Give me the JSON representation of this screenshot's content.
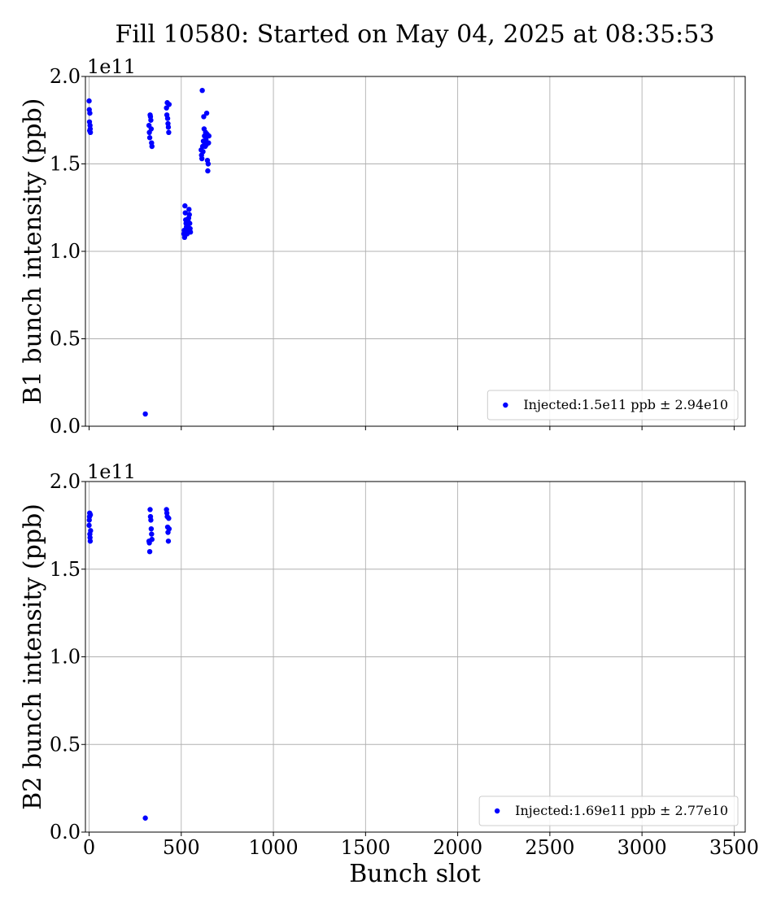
{
  "chart_data": {
    "title": "Fill 10580: Started on May 04, 2025 at 08:35:53",
    "xlabel": "Bunch slot",
    "xlim": [
      -20,
      3560
    ],
    "xticks": [
      0,
      500,
      1000,
      1500,
      2000,
      2500,
      3000,
      3500
    ],
    "xtick_labels": [
      "0",
      "500",
      "1000",
      "1500",
      "2000",
      "2500",
      "3000",
      "3500"
    ],
    "colors": {
      "points": "#0000ff",
      "grid": "#b0b0b0",
      "legend_border": "#cccccc"
    },
    "panels": [
      {
        "type": "scatter",
        "ylabel": "B1 bunch intensity (ppb)",
        "ylim": [
          0,
          2.0
        ],
        "yticks": [
          0.0,
          0.5,
          1.0,
          1.5,
          2.0
        ],
        "ytick_labels": [
          "0.0",
          "0.5",
          "1.0",
          "1.5",
          "2.0"
        ],
        "y_offset_text": "1e11",
        "grid": true,
        "legend_position": "lower right",
        "series": [
          {
            "name": "Injected:1.5e11 ppb ± 2.94e10",
            "points": [
              [
                0,
                1.86
              ],
              [
                1,
                1.81
              ],
              [
                2,
                1.74
              ],
              [
                3,
                1.69
              ],
              [
                4,
                1.79
              ],
              [
                5,
                1.72
              ],
              [
                6,
                1.7
              ],
              [
                7,
                1.68
              ],
              [
                305,
                0.07
              ],
              [
                325,
                1.72
              ],
              [
                327,
                1.68
              ],
              [
                329,
                1.65
              ],
              [
                331,
                1.78
              ],
              [
                333,
                1.77
              ],
              [
                335,
                1.75
              ],
              [
                337,
                1.7
              ],
              [
                339,
                1.62
              ],
              [
                341,
                1.6
              ],
              [
                420,
                1.82
              ],
              [
                422,
                1.78
              ],
              [
                424,
                1.85
              ],
              [
                426,
                1.76
              ],
              [
                428,
                1.73
              ],
              [
                430,
                1.71
              ],
              [
                432,
                1.68
              ],
              [
                434,
                1.84
              ],
              [
                514,
                1.1
              ],
              [
                516,
                1.12
              ],
              [
                518,
                1.08
              ],
              [
                520,
                1.26
              ],
              [
                522,
                1.22
              ],
              [
                524,
                1.18
              ],
              [
                526,
                1.16
              ],
              [
                528,
                1.14
              ],
              [
                530,
                1.12
              ],
              [
                532,
                1.1
              ],
              [
                534,
                1.13
              ],
              [
                536,
                1.15
              ],
              [
                538,
                1.17
              ],
              [
                540,
                1.19
              ],
              [
                542,
                1.24
              ],
              [
                544,
                1.21
              ],
              [
                546,
                1.16
              ],
              [
                548,
                1.13
              ],
              [
                550,
                1.11
              ],
              [
                608,
                1.58
              ],
              [
                610,
                1.55
              ],
              [
                612,
                1.53
              ],
              [
                614,
                1.92
              ],
              [
                616,
                1.6
              ],
              [
                618,
                1.57
              ],
              [
                620,
                1.63
              ],
              [
                622,
                1.77
              ],
              [
                624,
                1.7
              ],
              [
                626,
                1.66
              ],
              [
                628,
                1.62
              ],
              [
                630,
                1.6
              ],
              [
                632,
                1.68
              ],
              [
                634,
                1.64
              ],
              [
                636,
                1.61
              ],
              [
                638,
                1.79
              ],
              [
                640,
                1.67
              ],
              [
                642,
                1.52
              ],
              [
                644,
                1.46
              ],
              [
                646,
                1.5
              ],
              [
                648,
                1.62
              ],
              [
                650,
                1.66
              ]
            ]
          }
        ]
      },
      {
        "type": "scatter",
        "ylabel": "B2 bunch intensity (ppb)",
        "ylim": [
          0,
          2.0
        ],
        "yticks": [
          0.0,
          0.5,
          1.0,
          1.5,
          2.0
        ],
        "ytick_labels": [
          "0.0",
          "0.5",
          "1.0",
          "1.5",
          "2.0"
        ],
        "y_offset_text": "1e11",
        "grid": true,
        "legend_position": "lower right",
        "series": [
          {
            "name": "Injected:1.69e11 ppb ± 2.77e10",
            "points": [
              [
                0,
                1.75
              ],
              [
                1,
                1.78
              ],
              [
                2,
                1.8
              ],
              [
                3,
                1.82
              ],
              [
                4,
                1.7
              ],
              [
                5,
                1.68
              ],
              [
                6,
                1.66
              ],
              [
                7,
                1.81
              ],
              [
                8,
                1.72
              ],
              [
                305,
                0.08
              ],
              [
                325,
                1.66
              ],
              [
                327,
                1.65
              ],
              [
                329,
                1.6
              ],
              [
                331,
                1.84
              ],
              [
                333,
                1.8
              ],
              [
                335,
                1.78
              ],
              [
                337,
                1.73
              ],
              [
                339,
                1.7
              ],
              [
                341,
                1.67
              ],
              [
                420,
                1.84
              ],
              [
                422,
                1.82
              ],
              [
                424,
                1.8
              ],
              [
                426,
                1.74
              ],
              [
                428,
                1.71
              ],
              [
                430,
                1.66
              ],
              [
                432,
                1.79
              ],
              [
                434,
                1.73
              ]
            ]
          }
        ]
      }
    ]
  }
}
